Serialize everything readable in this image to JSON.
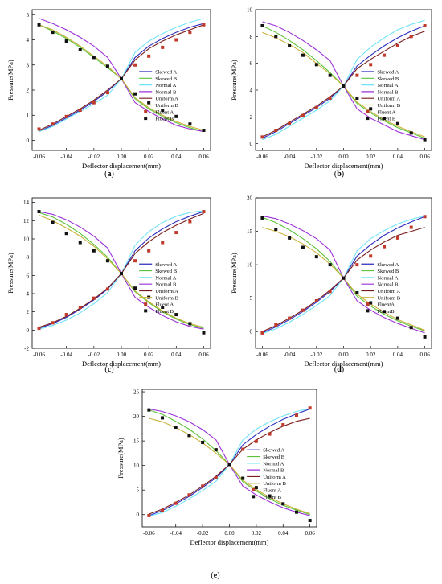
{
  "series_styles": {
    "Skewed A": {
      "color": "#2b2bbf",
      "kind": "line"
    },
    "Skewed B": {
      "color": "#5cc23a",
      "kind": "line"
    },
    "Normal A": {
      "color": "#6fe3f7",
      "kind": "line"
    },
    "Normal B": {
      "color": "#9b30d8",
      "kind": "line"
    },
    "Uniform A": {
      "color": "#7a1c1c",
      "kind": "line"
    },
    "Uniform B": {
      "color": "#c8b23a",
      "kind": "line"
    },
    "Fluent A": {
      "color": "#c0392b",
      "kind": "marker"
    },
    "Fluent B": {
      "color": "#111111",
      "kind": "marker"
    },
    "FluentA": {
      "color": "#c0392b",
      "kind": "marker"
    },
    "FluentB": {
      "color": "#111111",
      "kind": "marker"
    }
  },
  "chart_data": [
    {
      "type": "line",
      "panel_label": "(a)",
      "xlabel": "Deflector displacement(mm)",
      "ylabel": "Pressure(MPa)",
      "xlim": [
        -0.065,
        0.065
      ],
      "ylim": [
        -0.4,
        5.2
      ],
      "xticks": [
        "-0.06",
        "-0.04",
        "-0.02",
        "0.00",
        "0.02",
        "0.04",
        "0.06"
      ],
      "xtick_values": [
        -0.06,
        -0.04,
        -0.02,
        0.0,
        0.02,
        0.04,
        0.06
      ],
      "yticks": [
        "0",
        "1",
        "2",
        "3",
        "4",
        "5"
      ],
      "ytick_values": [
        0,
        1,
        2,
        3,
        4,
        5
      ],
      "legend": [
        "Skewed A",
        "Skewed B",
        "Normal A",
        "Normal B",
        "Uniform A",
        "Uniform B",
        "Fluent A",
        "Fluent B"
      ],
      "x": [
        -0.06,
        -0.05,
        -0.04,
        -0.03,
        -0.02,
        -0.01,
        0.0,
        0.01,
        0.02,
        0.03,
        0.04,
        0.05,
        0.06
      ],
      "series": [
        {
          "name": "Skewed A",
          "values": [
            0.35,
            0.6,
            0.9,
            1.2,
            1.55,
            1.95,
            2.45,
            3.3,
            3.75,
            4.05,
            4.3,
            4.5,
            4.65
          ]
        },
        {
          "name": "Skewed B",
          "values": [
            4.6,
            4.35,
            4.05,
            3.7,
            3.3,
            2.9,
            2.45,
            1.65,
            1.25,
            0.95,
            0.7,
            0.5,
            0.35
          ]
        },
        {
          "name": "Normal A",
          "values": [
            0.35,
            0.55,
            0.85,
            1.15,
            1.45,
            1.8,
            2.45,
            3.5,
            3.95,
            4.25,
            4.5,
            4.7,
            4.85
          ]
        },
        {
          "name": "Normal B",
          "values": [
            4.85,
            4.65,
            4.4,
            4.1,
            3.75,
            3.3,
            2.45,
            1.5,
            1.15,
            0.85,
            0.6,
            0.45,
            0.35
          ]
        },
        {
          "name": "Uniform A",
          "values": [
            0.4,
            0.65,
            0.95,
            1.25,
            1.6,
            2.0,
            2.45,
            3.2,
            3.65,
            3.95,
            4.2,
            4.4,
            4.6
          ]
        },
        {
          "name": "Uniform B",
          "values": [
            4.6,
            4.4,
            4.1,
            3.75,
            3.35,
            2.95,
            2.45,
            1.7,
            1.3,
            1.0,
            0.75,
            0.55,
            0.4
          ]
        },
        {
          "name": "Fluent A",
          "values": [
            0.45,
            0.65,
            0.95,
            1.2,
            1.5,
            1.9,
            2.45,
            3.0,
            3.35,
            3.7,
            4.0,
            4.3,
            4.6
          ]
        },
        {
          "name": "Fluent B",
          "values": [
            4.6,
            4.3,
            3.95,
            3.6,
            3.3,
            2.95,
            2.45,
            1.85,
            1.5,
            1.2,
            0.95,
            0.65,
            0.4
          ]
        }
      ]
    },
    {
      "type": "line",
      "panel_label": "(b)",
      "xlabel": "Deflector displacement(mm)",
      "ylabel": "Pressure(MPa)",
      "xlim": [
        -0.065,
        0.065
      ],
      "ylim": [
        -0.5,
        10
      ],
      "xticks": [
        "-0.06",
        "-0.04",
        "-0.02",
        "0.00",
        "0.02",
        "0.04",
        "0.06"
      ],
      "xtick_values": [
        -0.06,
        -0.04,
        -0.02,
        0.0,
        0.02,
        0.04,
        0.06
      ],
      "yticks": [
        "0",
        "2",
        "4",
        "6",
        "8",
        "10"
      ],
      "ytick_values": [
        0,
        2,
        4,
        6,
        8,
        10
      ],
      "legend": [
        "Skewed A",
        "Skewed B",
        "Normal A",
        "Normal B",
        "Uniform A",
        "Uniform B",
        "Fluent A",
        "Fluent B"
      ],
      "x": [
        -0.06,
        -0.05,
        -0.04,
        -0.03,
        -0.02,
        -0.01,
        0.0,
        0.01,
        0.02,
        0.03,
        0.04,
        0.05,
        0.06
      ],
      "series": [
        {
          "name": "Skewed A",
          "values": [
            0.4,
            0.9,
            1.5,
            2.1,
            2.7,
            3.4,
            4.3,
            5.8,
            6.6,
            7.3,
            7.9,
            8.4,
            8.8
          ]
        },
        {
          "name": "Skewed B",
          "values": [
            8.8,
            8.3,
            7.7,
            7.0,
            6.2,
            5.3,
            4.3,
            3.0,
            2.3,
            1.7,
            1.2,
            0.8,
            0.4
          ]
        },
        {
          "name": "Normal A",
          "values": [
            0.3,
            0.7,
            1.3,
            1.9,
            2.5,
            3.2,
            4.3,
            6.3,
            7.2,
            7.9,
            8.5,
            8.9,
            9.2
          ]
        },
        {
          "name": "Normal B",
          "values": [
            9.1,
            8.8,
            8.3,
            7.7,
            7.0,
            6.2,
            4.3,
            2.6,
            1.9,
            1.4,
            0.9,
            0.6,
            0.3
          ]
        },
        {
          "name": "Uniform A",
          "values": [
            0.5,
            1.0,
            1.6,
            2.2,
            2.8,
            3.5,
            4.3,
            5.6,
            6.3,
            6.9,
            7.5,
            8.0,
            8.4
          ]
        },
        {
          "name": "Uniform B",
          "values": [
            8.3,
            7.9,
            7.4,
            6.8,
            6.0,
            5.2,
            4.3,
            3.1,
            2.4,
            1.8,
            1.3,
            0.9,
            0.5
          ]
        },
        {
          "name": "Fluent A",
          "values": [
            0.5,
            1.0,
            1.5,
            2.1,
            2.7,
            3.4,
            4.3,
            5.1,
            5.9,
            6.6,
            7.3,
            8.0,
            8.8
          ]
        },
        {
          "name": "Fluent B",
          "values": [
            8.8,
            8.0,
            7.3,
            6.6,
            5.9,
            5.1,
            4.3,
            3.4,
            2.6,
            1.9,
            1.5,
            0.8,
            0.3
          ]
        }
      ]
    },
    {
      "type": "line",
      "panel_label": "(c)",
      "xlabel": "Deflector displacement(mm)",
      "ylabel": "Pressure(MPa)",
      "xlim": [
        -0.065,
        0.065
      ],
      "ylim": [
        -2,
        14.5
      ],
      "xticks": [
        "-0.06",
        "-0.04",
        "-0.02",
        "0.00",
        "0.02",
        "0.04",
        "0.06"
      ],
      "xtick_values": [
        -0.06,
        -0.04,
        -0.02,
        0.0,
        0.02,
        0.04,
        0.06
      ],
      "yticks": [
        "-2",
        "0",
        "2",
        "4",
        "6",
        "8",
        "10",
        "12",
        "14"
      ],
      "ytick_values": [
        -2,
        0,
        2,
        4,
        6,
        8,
        10,
        12,
        14
      ],
      "legend": [
        "Skewed A",
        "Skewed B",
        "Normal A",
        "Normal B",
        "Uniform A",
        "Uniform B",
        "Fluent A",
        "Fluent B"
      ],
      "x": [
        -0.06,
        -0.05,
        -0.04,
        -0.03,
        -0.02,
        -0.01,
        0.0,
        0.01,
        0.02,
        0.03,
        0.04,
        0.05,
        0.06
      ],
      "series": [
        {
          "name": "Skewed A",
          "values": [
            0.2,
            0.7,
            1.4,
            2.3,
            3.3,
            4.5,
            6.2,
            8.7,
            10.1,
            11.1,
            11.9,
            12.5,
            13.0
          ]
        },
        {
          "name": "Skewed B",
          "values": [
            12.9,
            12.4,
            11.6,
            10.6,
            9.4,
            8.0,
            6.2,
            4.2,
            3.0,
            2.0,
            1.2,
            0.6,
            0.2
          ]
        },
        {
          "name": "Normal A",
          "values": [
            0.1,
            0.5,
            1.1,
            1.9,
            2.9,
            4.1,
            6.2,
            9.3,
            10.8,
            11.8,
            12.5,
            12.9,
            13.1
          ]
        },
        {
          "name": "Normal B",
          "values": [
            13.0,
            12.7,
            12.1,
            11.3,
            10.3,
            9.0,
            6.2,
            3.6,
            2.5,
            1.6,
            0.9,
            0.4,
            0.1
          ]
        },
        {
          "name": "Uniform A",
          "values": [
            0.3,
            0.8,
            1.5,
            2.4,
            3.4,
            4.6,
            6.2,
            8.4,
            9.7,
            10.7,
            11.5,
            12.2,
            12.8
          ]
        },
        {
          "name": "Uniform B",
          "values": [
            12.6,
            12.0,
            11.2,
            10.3,
            9.2,
            7.8,
            6.2,
            4.3,
            3.1,
            2.1,
            1.3,
            0.7,
            0.3
          ]
        },
        {
          "name": "Fluent A",
          "values": [
            0.2,
            0.8,
            1.7,
            2.5,
            3.5,
            4.5,
            6.2,
            7.6,
            8.7,
            9.6,
            10.7,
            11.9,
            13.0
          ]
        },
        {
          "name": "Fluent B",
          "values": [
            13.0,
            11.8,
            10.6,
            9.6,
            8.7,
            7.6,
            6.2,
            4.6,
            3.6,
            2.5,
            1.7,
            0.7,
            -0.3
          ]
        }
      ]
    },
    {
      "type": "line",
      "panel_label": "(d)",
      "xlabel": "Deflector displacement(mm)",
      "ylabel": "Pressure(MPa)",
      "xlim": [
        -0.065,
        0.065
      ],
      "ylim": [
        -2.5,
        20
      ],
      "xticks": [
        "-0.06",
        "-0.04",
        "-0.02",
        "0.00",
        "0.02",
        "0.04",
        "0.06"
      ],
      "xtick_values": [
        -0.06,
        -0.04,
        -0.02,
        0.0,
        0.02,
        0.04,
        0.06
      ],
      "yticks": [
        "0",
        "5",
        "10",
        "15",
        "20"
      ],
      "ytick_values": [
        0,
        5,
        10,
        15,
        20
      ],
      "legend": [
        "Skewed A",
        "Skewed B",
        "Normal A",
        "Normal B",
        "Uniform A",
        "Uniform B",
        "FluentA",
        "FluentB"
      ],
      "x": [
        -0.06,
        -0.05,
        -0.04,
        -0.03,
        -0.02,
        -0.01,
        0.0,
        0.01,
        0.02,
        0.03,
        0.04,
        0.05,
        0.06
      ],
      "series": [
        {
          "name": "Skewed A",
          "values": [
            -0.2,
            0.7,
            1.8,
            3.0,
            4.4,
            6.0,
            8.0,
            11.3,
            13.0,
            14.4,
            15.5,
            16.4,
            17.2
          ]
        },
        {
          "name": "Skewed B",
          "values": [
            17.1,
            16.3,
            15.2,
            13.9,
            12.4,
            10.5,
            8.0,
            5.3,
            3.8,
            2.6,
            1.6,
            0.8,
            0.1
          ]
        },
        {
          "name": "Normal A",
          "values": [
            -0.3,
            0.4,
            1.4,
            2.6,
            3.9,
            5.4,
            8.0,
            12.1,
            13.9,
            15.1,
            16.1,
            16.8,
            17.3
          ]
        },
        {
          "name": "Normal B",
          "values": [
            17.3,
            16.9,
            16.1,
            15.1,
            13.9,
            12.2,
            8.0,
            4.6,
            3.2,
            2.1,
            1.2,
            0.5,
            -0.2
          ]
        },
        {
          "name": "Uniform A",
          "values": [
            0.0,
            0.9,
            2.0,
            3.2,
            4.6,
            6.2,
            8.0,
            10.7,
            12.2,
            13.4,
            14.4,
            15.0,
            15.6
          ]
        },
        {
          "name": "Uniform B",
          "values": [
            15.6,
            15.0,
            14.2,
            13.1,
            11.8,
            10.1,
            8.0,
            5.6,
            4.1,
            2.9,
            1.8,
            1.0,
            0.2
          ]
        },
        {
          "name": "FluentA",
          "values": [
            -0.2,
            1.0,
            2.0,
            3.2,
            4.6,
            6.0,
            8.0,
            10.0,
            11.3,
            12.7,
            14.0,
            15.6,
            17.2
          ]
        },
        {
          "name": "FluentB",
          "values": [
            17.0,
            15.3,
            14.0,
            12.6,
            11.2,
            10.0,
            8.0,
            5.8,
            4.3,
            3.0,
            2.0,
            0.6,
            -0.8
          ]
        }
      ]
    },
    {
      "type": "line",
      "panel_label": "(e)",
      "xlabel": "Deflector displacement(mm)",
      "ylabel": "Pressure(MPa)",
      "xlim": [
        -0.065,
        0.065
      ],
      "ylim": [
        -2.5,
        25.5
      ],
      "xticks": [
        "-0.06",
        "-0.04",
        "-0.02",
        "0.00",
        "0.02",
        "0.04",
        "0.06"
      ],
      "xtick_values": [
        -0.06,
        -0.04,
        -0.02,
        0.0,
        0.02,
        0.04,
        0.06
      ],
      "yticks": [
        "0",
        "5",
        "10",
        "15",
        "20",
        "25"
      ],
      "ytick_values": [
        0,
        5,
        10,
        15,
        20,
        25
      ],
      "legend": [
        "Skewed A",
        "Skewed B",
        "Normal A",
        "Normal B",
        "Uniform A",
        "Uniform B",
        "Fluent A",
        "Fluent B"
      ],
      "x": [
        -0.06,
        -0.05,
        -0.04,
        -0.03,
        -0.02,
        -0.01,
        0.0,
        0.01,
        0.02,
        0.03,
        0.04,
        0.05,
        0.06
      ],
      "series": [
        {
          "name": "Skewed A",
          "values": [
            -0.2,
            0.8,
            2.2,
            3.7,
            5.5,
            7.5,
            10.2,
            14.2,
            16.3,
            18.0,
            19.4,
            20.5,
            21.5
          ]
        },
        {
          "name": "Skewed B",
          "values": [
            21.3,
            20.4,
            19.0,
            17.4,
            15.4,
            13.0,
            10.2,
            6.7,
            4.8,
            3.2,
            1.9,
            0.9,
            0.0
          ]
        },
        {
          "name": "Normal A",
          "values": [
            -0.3,
            0.4,
            1.7,
            3.2,
            4.9,
            6.8,
            10.2,
            15.2,
            17.4,
            18.9,
            20.1,
            21.0,
            21.6
          ]
        },
        {
          "name": "Normal B",
          "values": [
            21.5,
            21.0,
            20.1,
            18.9,
            17.3,
            15.2,
            10.2,
            5.8,
            4.0,
            2.6,
            1.4,
            0.5,
            -0.2
          ]
        },
        {
          "name": "Uniform A",
          "values": [
            0.1,
            1.1,
            2.5,
            4.0,
            5.8,
            7.8,
            10.2,
            13.3,
            15.2,
            16.7,
            18.0,
            19.0,
            19.6
          ]
        },
        {
          "name": "Uniform B",
          "values": [
            19.6,
            18.9,
            17.7,
            16.3,
            14.6,
            12.5,
            10.2,
            7.0,
            5.1,
            3.5,
            2.2,
            1.1,
            0.2
          ]
        },
        {
          "name": "Fluent A",
          "values": [
            -0.2,
            0.8,
            2.3,
            4.0,
            5.8,
            7.5,
            10.2,
            13.3,
            14.9,
            16.4,
            18.3,
            20.2,
            21.7
          ]
        },
        {
          "name": "Fluent B",
          "values": [
            21.3,
            19.7,
            17.8,
            16.1,
            14.7,
            13.2,
            10.2,
            7.4,
            5.5,
            3.8,
            2.2,
            0.5,
            -1.2
          ]
        }
      ]
    }
  ]
}
